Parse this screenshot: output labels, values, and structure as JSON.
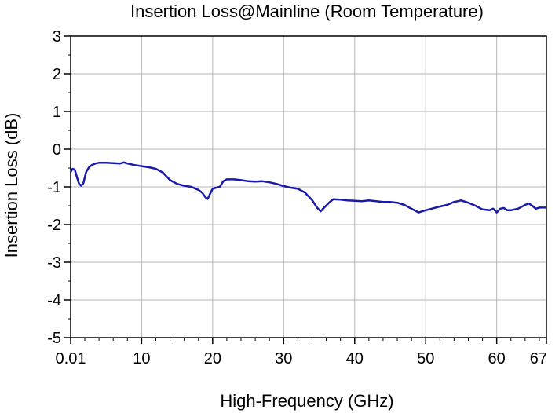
{
  "chart_data": {
    "type": "line",
    "title": "Insertion Loss@Mainline (Room Temperature)",
    "xlabel": "High-Frequency (GHz)",
    "ylabel": "Insertion Loss (dB)",
    "xlim": [
      0.01,
      67
    ],
    "ylim": [
      -5,
      3
    ],
    "x_ticks": [
      0.01,
      10,
      20,
      30,
      40,
      50,
      60,
      67
    ],
    "x_tick_labels": [
      "0.01",
      "10",
      "20",
      "30",
      "40",
      "50",
      "60",
      "67"
    ],
    "y_ticks": [
      -5,
      -4,
      -3,
      -2,
      -1,
      0,
      1,
      2,
      3
    ],
    "y_tick_labels": [
      "-5",
      "-4",
      "-3",
      "-2",
      "-1",
      "0",
      "1",
      "2",
      "3"
    ],
    "grid": true,
    "line_color": "#1a1aa8",
    "series": [
      {
        "x": [
          0.01,
          0.3,
          0.6,
          0.9,
          1.2,
          1.5,
          1.8,
          2.2,
          2.6,
          3.0,
          3.5,
          4.0,
          5.0,
          6.0,
          7.0,
          7.5,
          8.0,
          9.0,
          10.0,
          11.0,
          12.0,
          13.0,
          14.0,
          15.0,
          16.0,
          17.0,
          18.0,
          18.5,
          19.0,
          19.3,
          19.6,
          20.0,
          20.5,
          21.0,
          21.5,
          22.0,
          23.0,
          24.0,
          25.0,
          26.0,
          27.0,
          28.0,
          29.0,
          30.0,
          31.0,
          32.0,
          33.0,
          34.0,
          34.7,
          35.2,
          35.7,
          36.5,
          37.0,
          38.0,
          39.0,
          40.0,
          41.0,
          42.0,
          43.0,
          44.0,
          45.0,
          46.0,
          47.0,
          48.0,
          49.0,
          50.0,
          51.0,
          52.0,
          53.0,
          54.0,
          55.0,
          56.0,
          57.0,
          58.0,
          59.0,
          59.5,
          60.0,
          60.5,
          61.0,
          61.5,
          62.0,
          63.0,
          64.0,
          64.5,
          65.0,
          65.5,
          66.0,
          67.0
        ],
        "y": [
          -0.6,
          -0.52,
          -0.55,
          -0.75,
          -0.92,
          -0.97,
          -0.9,
          -0.6,
          -0.48,
          -0.42,
          -0.38,
          -0.36,
          -0.36,
          -0.37,
          -0.38,
          -0.35,
          -0.38,
          -0.42,
          -0.45,
          -0.48,
          -0.52,
          -0.62,
          -0.82,
          -0.92,
          -0.97,
          -1.0,
          -1.08,
          -1.15,
          -1.28,
          -1.32,
          -1.2,
          -1.05,
          -1.02,
          -1.0,
          -0.85,
          -0.8,
          -0.8,
          -0.82,
          -0.85,
          -0.86,
          -0.85,
          -0.88,
          -0.92,
          -0.98,
          -1.02,
          -1.05,
          -1.15,
          -1.35,
          -1.55,
          -1.65,
          -1.55,
          -1.4,
          -1.33,
          -1.34,
          -1.36,
          -1.37,
          -1.38,
          -1.36,
          -1.38,
          -1.4,
          -1.4,
          -1.42,
          -1.48,
          -1.58,
          -1.68,
          -1.62,
          -1.57,
          -1.52,
          -1.48,
          -1.4,
          -1.36,
          -1.42,
          -1.5,
          -1.6,
          -1.62,
          -1.58,
          -1.68,
          -1.58,
          -1.56,
          -1.62,
          -1.62,
          -1.58,
          -1.48,
          -1.44,
          -1.5,
          -1.58,
          -1.55,
          -1.55
        ]
      }
    ]
  }
}
